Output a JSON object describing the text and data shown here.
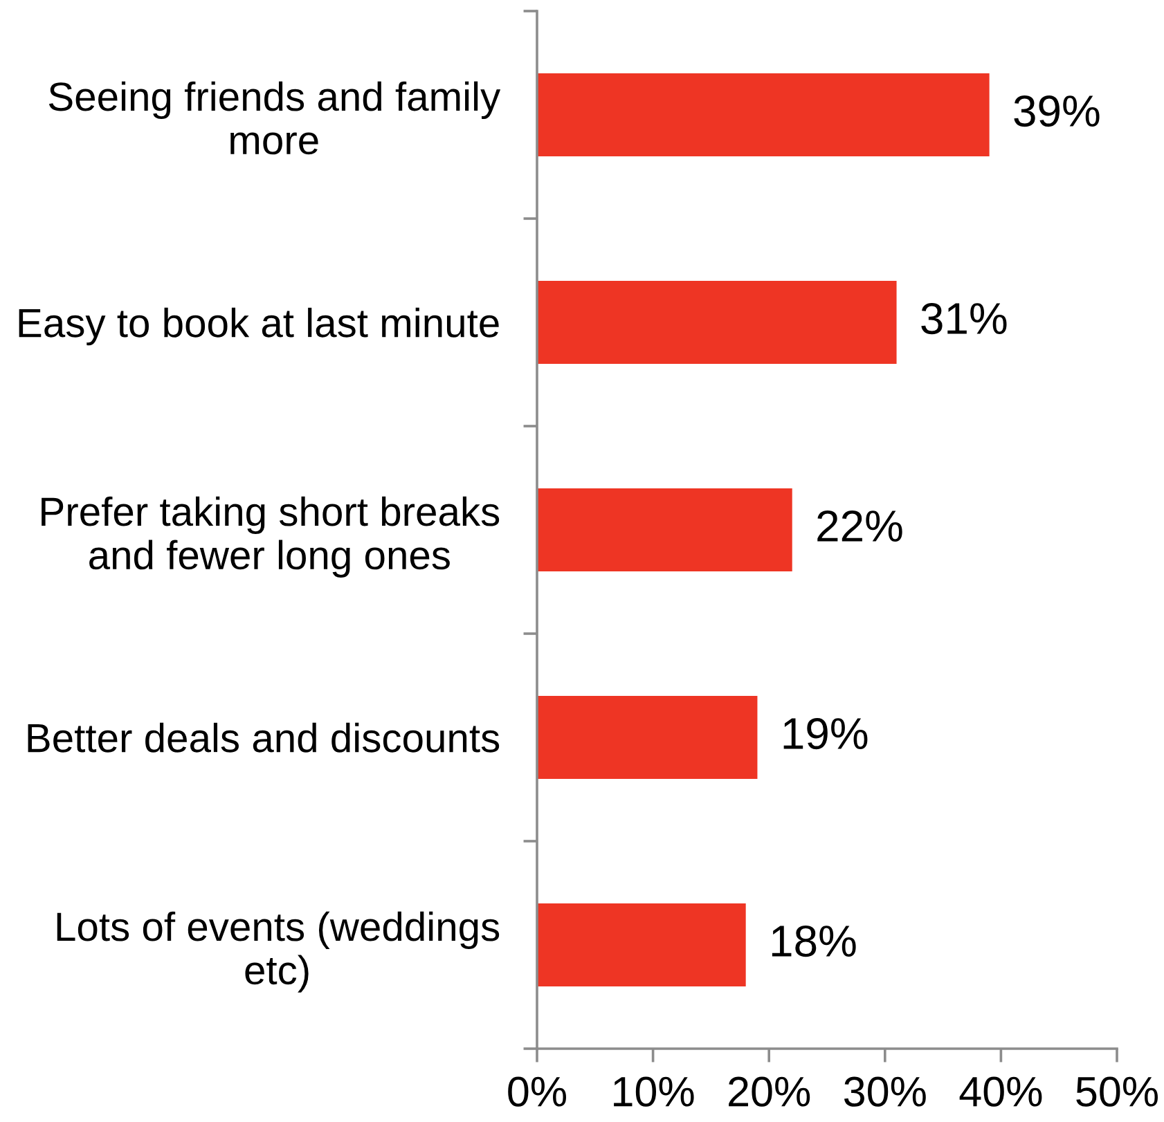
{
  "chart_data": {
    "type": "bar",
    "orientation": "horizontal",
    "categories": [
      "Seeing friends and family\nmore",
      "Easy to book at last minute",
      "Prefer taking short breaks\nand fewer long ones",
      "Better deals and discounts",
      "Lots of events (weddings\netc)"
    ],
    "values": [
      39,
      31,
      22,
      19,
      18
    ],
    "color": "#ee3524",
    "value_labels": [
      "39%",
      "31%",
      "22%",
      "19%",
      "18%"
    ],
    "xlim": [
      0,
      50
    ],
    "xticks": [
      {
        "value": 0,
        "label": "0%"
      },
      {
        "value": 10,
        "label": "10%"
      },
      {
        "value": 20,
        "label": "20%"
      },
      {
        "value": 30,
        "label": "30%"
      },
      {
        "value": 40,
        "label": "40%"
      },
      {
        "value": 50,
        "label": "50%"
      }
    ],
    "grid": false
  }
}
